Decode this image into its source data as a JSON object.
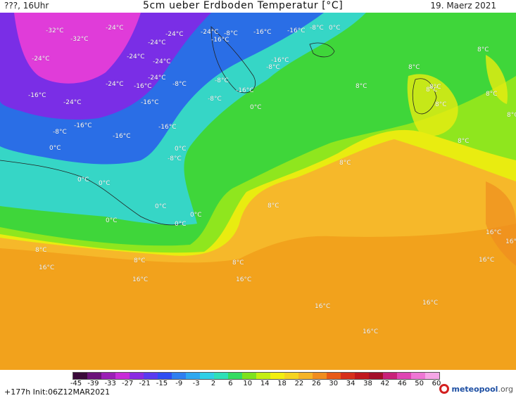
{
  "header": {
    "left": "???, 16Uhr",
    "title": "5cm ueber Erdboden Temperatur [°C]",
    "date": "19. Maerz 2021"
  },
  "footer": {
    "run": "+177h  Init:06Z12MAR2021",
    "brand": "meteopool",
    "brand_suffix": ".org"
  },
  "colors": {
    "ocean_warm": "#f2a21c",
    "ocean_orange": "#f6b82a",
    "yellow_band": "#e9ec10",
    "green_light": "#8fe61e",
    "green": "#3fd63a",
    "cyan": "#36d6c6",
    "blue": "#2a6ee6",
    "violet": "#7a2ee6",
    "magenta": "#e03cd9"
  },
  "scale": {
    "ticks": [
      "-45",
      "-39",
      "-33",
      "-27",
      "-21",
      "-15",
      "-9",
      "-3",
      "2",
      "6",
      "10",
      "14",
      "18",
      "22",
      "26",
      "30",
      "34",
      "38",
      "42",
      "46",
      "50",
      "60"
    ],
    "colors": [
      "#3a0a3a",
      "#6b137a",
      "#9a1fb5",
      "#c72cd8",
      "#8a2be2",
      "#5a3af0",
      "#2f4ef2",
      "#2f7ff0",
      "#2fa8f0",
      "#30cfe6",
      "#2fe0b8",
      "#34dc62",
      "#7ee21e",
      "#c4ee12",
      "#f2ef10",
      "#f5d420",
      "#f5b428",
      "#f08d20",
      "#e85a18",
      "#d6301c",
      "#c0181e",
      "#a3102a",
      "#c8227a",
      "#df46b3",
      "#ee76d4",
      "#f6a6e6"
    ]
  },
  "map_labels": [
    {
      "text": "-32°C"
    },
    {
      "text": "-32°C"
    },
    {
      "text": "-24°C"
    },
    {
      "text": "-24°C"
    },
    {
      "text": "-24°C"
    },
    {
      "text": "-24°C"
    },
    {
      "text": "-24°C"
    },
    {
      "text": "-16°C"
    },
    {
      "text": "-8°C"
    },
    {
      "text": "-16°C"
    },
    {
      "text": "-16°C"
    },
    {
      "text": "-8°C"
    },
    {
      "text": "0°C"
    },
    {
      "text": "-24°C"
    },
    {
      "text": "-24°C"
    },
    {
      "text": "-24°C"
    },
    {
      "text": "-16°C"
    },
    {
      "text": "-8°C"
    },
    {
      "text": "-8°C"
    },
    {
      "text": "-24°C"
    },
    {
      "text": "-16°C"
    },
    {
      "text": "-16°C"
    },
    {
      "text": "-16°C"
    },
    {
      "text": "-8°C"
    },
    {
      "text": "-16°C"
    },
    {
      "text": "-24°C"
    },
    {
      "text": "-16°C"
    },
    {
      "text": "0°C"
    },
    {
      "text": "0°C"
    },
    {
      "text": "-16°C"
    },
    {
      "text": "-8°C"
    },
    {
      "text": "-8°C"
    },
    {
      "text": "-16°C"
    },
    {
      "text": "0°C"
    },
    {
      "text": "-8°C"
    },
    {
      "text": "0°C"
    },
    {
      "text": "0°C"
    },
    {
      "text": "0°C"
    },
    {
      "text": "8°C"
    },
    {
      "text": "0°C"
    },
    {
      "text": "0°C"
    },
    {
      "text": "0°C"
    },
    {
      "text": "8°C"
    },
    {
      "text": "8°C"
    },
    {
      "text": "8°C"
    },
    {
      "text": "8°C"
    },
    {
      "text": "8°C"
    },
    {
      "text": "8°C"
    },
    {
      "text": "8°C"
    },
    {
      "text": "8°C"
    },
    {
      "text": "16°C"
    },
    {
      "text": "16°C"
    },
    {
      "text": "16°C"
    },
    {
      "text": "16°C"
    },
    {
      "text": "16°C"
    },
    {
      "text": "16°C"
    },
    {
      "text": "16°C"
    },
    {
      "text": "16°C"
    },
    {
      "text": "16°C"
    },
    {
      "text": "8°C"
    },
    {
      "text": "8°C"
    },
    {
      "text": "8°C"
    },
    {
      "text": "8°C"
    },
    {
      "text": "8°C"
    }
  ]
}
